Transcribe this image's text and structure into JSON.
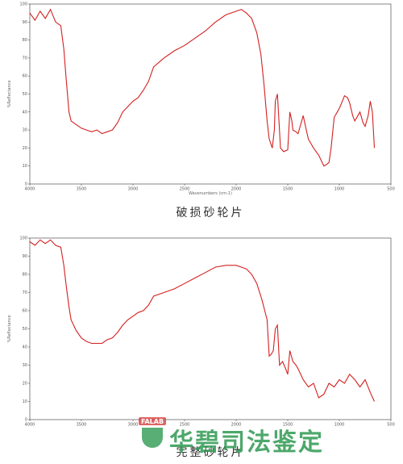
{
  "chart_data": [
    {
      "type": "line",
      "caption": "破损砂轮片",
      "xlabel": "Wavenumbers (cm-1)",
      "ylabel": "%Reflectance",
      "xlim": [
        4000,
        500
      ],
      "ylim": [
        0,
        100
      ],
      "xticks": [
        4000,
        3500,
        3000,
        2500,
        2000,
        1500,
        1000,
        500
      ],
      "yticks": [
        0,
        10,
        20,
        30,
        40,
        50,
        60,
        70,
        80,
        90,
        100
      ],
      "series": [
        {
          "color": "#d42020",
          "x": [
            4000,
            3950,
            3900,
            3850,
            3800,
            3750,
            3700,
            3670,
            3650,
            3620,
            3600,
            3550,
            3500,
            3450,
            3400,
            3350,
            3300,
            3250,
            3200,
            3150,
            3100,
            3050,
            3000,
            2950,
            2900,
            2850,
            2800,
            2700,
            2600,
            2500,
            2400,
            2300,
            2200,
            2100,
            2000,
            1950,
            1900,
            1850,
            1800,
            1760,
            1730,
            1700,
            1680,
            1650,
            1630,
            1620,
            1600,
            1585,
            1570,
            1540,
            1500,
            1480,
            1460,
            1450,
            1420,
            1400,
            1380,
            1350,
            1320,
            1300,
            1270,
            1250,
            1200,
            1150,
            1120,
            1100,
            1080,
            1050,
            1020,
            1000,
            970,
            950,
            920,
            900,
            870,
            850,
            820,
            800,
            770,
            750,
            720,
            700,
            680,
            660
          ],
          "values": [
            95,
            91,
            96,
            92,
            97,
            90,
            88,
            75,
            60,
            40,
            35,
            33,
            31,
            30,
            29,
            30,
            28,
            29,
            30,
            34,
            40,
            43,
            46,
            48,
            52,
            57,
            65,
            70,
            74,
            77,
            81,
            85,
            90,
            94,
            96,
            97,
            95,
            92,
            84,
            72,
            55,
            35,
            25,
            20,
            30,
            46,
            50,
            35,
            20,
            18,
            19,
            40,
            35,
            30,
            29,
            28,
            32,
            38,
            30,
            25,
            22,
            20,
            16,
            10,
            11,
            12,
            20,
            37,
            40,
            42,
            46,
            49,
            48,
            45,
            38,
            35,
            38,
            40,
            34,
            32,
            38,
            46,
            40,
            20
          ]
        }
      ]
    },
    {
      "type": "line",
      "caption": "完整砂轮片",
      "ylabel": "%Reflectance",
      "xlim": [
        4000,
        500
      ],
      "ylim": [
        0,
        100
      ],
      "xticks": [
        4000,
        3500,
        3000,
        2500,
        2000,
        1500,
        1000,
        500
      ],
      "yticks": [
        0,
        10,
        20,
        30,
        40,
        50,
        60,
        70,
        80,
        90,
        100
      ],
      "series": [
        {
          "color": "#d42020",
          "x": [
            4000,
            3950,
            3900,
            3850,
            3800,
            3750,
            3700,
            3670,
            3650,
            3620,
            3600,
            3550,
            3500,
            3450,
            3400,
            3350,
            3300,
            3250,
            3200,
            3150,
            3100,
            3050,
            3000,
            2950,
            2900,
            2850,
            2800,
            2700,
            2600,
            2500,
            2400,
            2300,
            2200,
            2100,
            2000,
            1950,
            1900,
            1850,
            1800,
            1750,
            1700,
            1680,
            1660,
            1640,
            1620,
            1600,
            1580,
            1550,
            1520,
            1500,
            1480,
            1450,
            1420,
            1400,
            1350,
            1300,
            1250,
            1200,
            1150,
            1100,
            1050,
            1000,
            950,
            900,
            850,
            800,
            750,
            700,
            660
          ],
          "values": [
            98,
            96,
            99,
            97,
            99,
            96,
            95,
            85,
            75,
            62,
            55,
            49,
            45,
            43,
            42,
            42,
            42,
            44,
            45,
            48,
            52,
            55,
            57,
            59,
            60,
            63,
            68,
            70,
            72,
            75,
            78,
            81,
            84,
            85,
            85,
            84,
            83,
            80,
            75,
            66,
            55,
            35,
            36,
            38,
            50,
            52,
            30,
            32,
            28,
            25,
            38,
            32,
            30,
            28,
            22,
            18,
            20,
            12,
            14,
            20,
            18,
            22,
            20,
            25,
            22,
            18,
            22,
            15,
            10
          ]
        }
      ]
    }
  ],
  "watermark": {
    "logo": "FALAB",
    "text": "华碧司法鉴定"
  }
}
